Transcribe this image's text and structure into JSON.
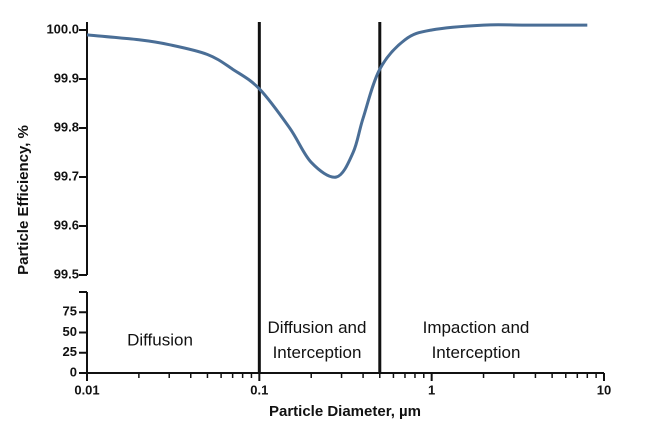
{
  "chart_data": {
    "type": "line",
    "x_label": "Particle Diameter, µm",
    "y_label": "Particle Efficiency, %",
    "x": [
      0.01,
      0.02,
      0.03,
      0.05,
      0.07,
      0.1,
      0.15,
      0.2,
      0.28,
      0.35,
      0.4,
      0.5,
      0.7,
      1,
      2,
      3.5,
      8
    ],
    "series": [
      {
        "color": "#4a6e96",
        "values": [
          99.99,
          99.98,
          99.97,
          99.95,
          99.92,
          99.88,
          99.8,
          99.73,
          99.7,
          99.75,
          99.82,
          99.92,
          99.98,
          100.0,
          100.01,
          100.01,
          100.01
        ]
      }
    ],
    "xlim": [
      0.01,
      10
    ],
    "xlog": true,
    "xticks": [
      0.01,
      0.1,
      1,
      10
    ],
    "xticks_minor": [
      0.02,
      0.03,
      0.04,
      0.05,
      0.06,
      0.07,
      0.08,
      0.09,
      0.2,
      0.3,
      0.4,
      0.5,
      0.6,
      0.7,
      0.8,
      0.9,
      2,
      3,
      4,
      5,
      6,
      7,
      8,
      9
    ],
    "ylim": [
      99.5,
      100.0
    ],
    "yticks": [
      99.5,
      99.6,
      99.7,
      99.8,
      99.9,
      {
        "value": 100.0,
        "label": "100.0"
      }
    ],
    "lower_ylim": [
      0,
      100
    ],
    "lower_yticks": [
      0,
      25,
      50,
      75
    ],
    "boundaries": [
      0.1,
      0.5
    ],
    "regions": [
      {
        "lines": [
          "Diffusion"
        ]
      },
      {
        "lines": [
          "Diffusion and",
          "Interception"
        ]
      },
      {
        "lines": [
          "Impaction and",
          "Interception"
        ]
      }
    ]
  }
}
